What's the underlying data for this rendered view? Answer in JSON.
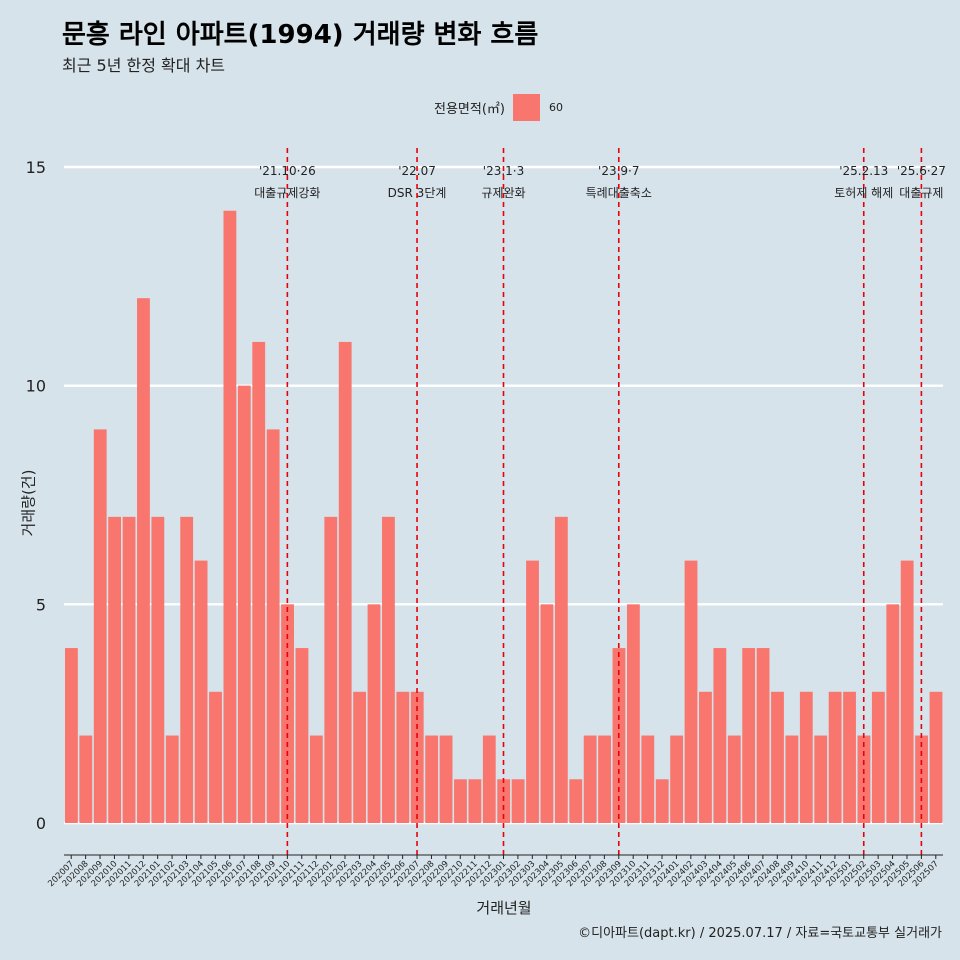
{
  "header": {
    "title": "문흥 라인 아파트(1994) 거래량 변화 흐름",
    "subtitle": "최근 5년 한정 확대 차트"
  },
  "legend": {
    "title": "전용면적(㎡)",
    "label": "60"
  },
  "caption": "©디아파트(dapt.kr) / 2025.07.17 / 자료=국토교통부 실거래가",
  "colors": {
    "background": "#d6e3ea",
    "bar": "#f8766d",
    "gridline": "#ffffff",
    "event_line": "#e8000b"
  },
  "chart_data": {
    "type": "bar",
    "title": "문흥 라인 아파트(1994) 거래량 변화 흐름",
    "subtitle": "최근 5년 한정 확대 차트",
    "xlabel": "거래년월",
    "ylabel": "거래량(건)",
    "ylim": [
      0,
      15
    ],
    "yticks": [
      0,
      5,
      10,
      15
    ],
    "grid": "horizontal major gridlines",
    "legend_position": "top",
    "categories": [
      "202007",
      "202008",
      "202009",
      "202010",
      "202011",
      "202012",
      "202101",
      "202102",
      "202103",
      "202104",
      "202105",
      "202106",
      "202107",
      "202108",
      "202109",
      "202110",
      "202111",
      "202112",
      "202201",
      "202202",
      "202203",
      "202204",
      "202205",
      "202206",
      "202207",
      "202208",
      "202209",
      "202210",
      "202211",
      "202212",
      "202301",
      "202302",
      "202303",
      "202304",
      "202305",
      "202306",
      "202307",
      "202308",
      "202309",
      "202310",
      "202311",
      "202312",
      "202401",
      "202402",
      "202403",
      "202404",
      "202405",
      "202406",
      "202407",
      "202408",
      "202409",
      "202410",
      "202411",
      "202412",
      "202501",
      "202502",
      "202503",
      "202504",
      "202505",
      "202506",
      "202507"
    ],
    "series": [
      {
        "name": "60",
        "values": [
          4,
          2,
          9,
          7,
          7,
          12,
          7,
          2,
          7,
          6,
          3,
          14,
          10,
          11,
          9,
          5,
          4,
          2,
          7,
          11,
          3,
          5,
          7,
          3,
          3,
          2,
          2,
          1,
          1,
          2,
          1,
          1,
          6,
          5,
          7,
          1,
          2,
          2,
          4,
          5,
          2,
          1,
          2,
          6,
          3,
          4,
          2,
          4,
          4,
          3,
          2,
          3,
          2,
          3,
          3,
          2,
          3,
          5,
          6,
          2,
          3
        ]
      }
    ],
    "events": [
      {
        "month": "202110",
        "date_label": "'21.10·26",
        "label": "대출규제강화"
      },
      {
        "month": "202207",
        "date_label": "'22.07",
        "label": "DSR 3단계"
      },
      {
        "month": "202301",
        "date_label": "'23.1·3",
        "label": "규제완화"
      },
      {
        "month": "202309",
        "date_label": "'23.9·7",
        "label": "특례대출축소"
      },
      {
        "month": "202502",
        "date_label": "'25.2.13",
        "label": "토허제 해제"
      },
      {
        "month": "202506",
        "date_label": "'25.6·27",
        "label": "대출규제"
      }
    ]
  }
}
